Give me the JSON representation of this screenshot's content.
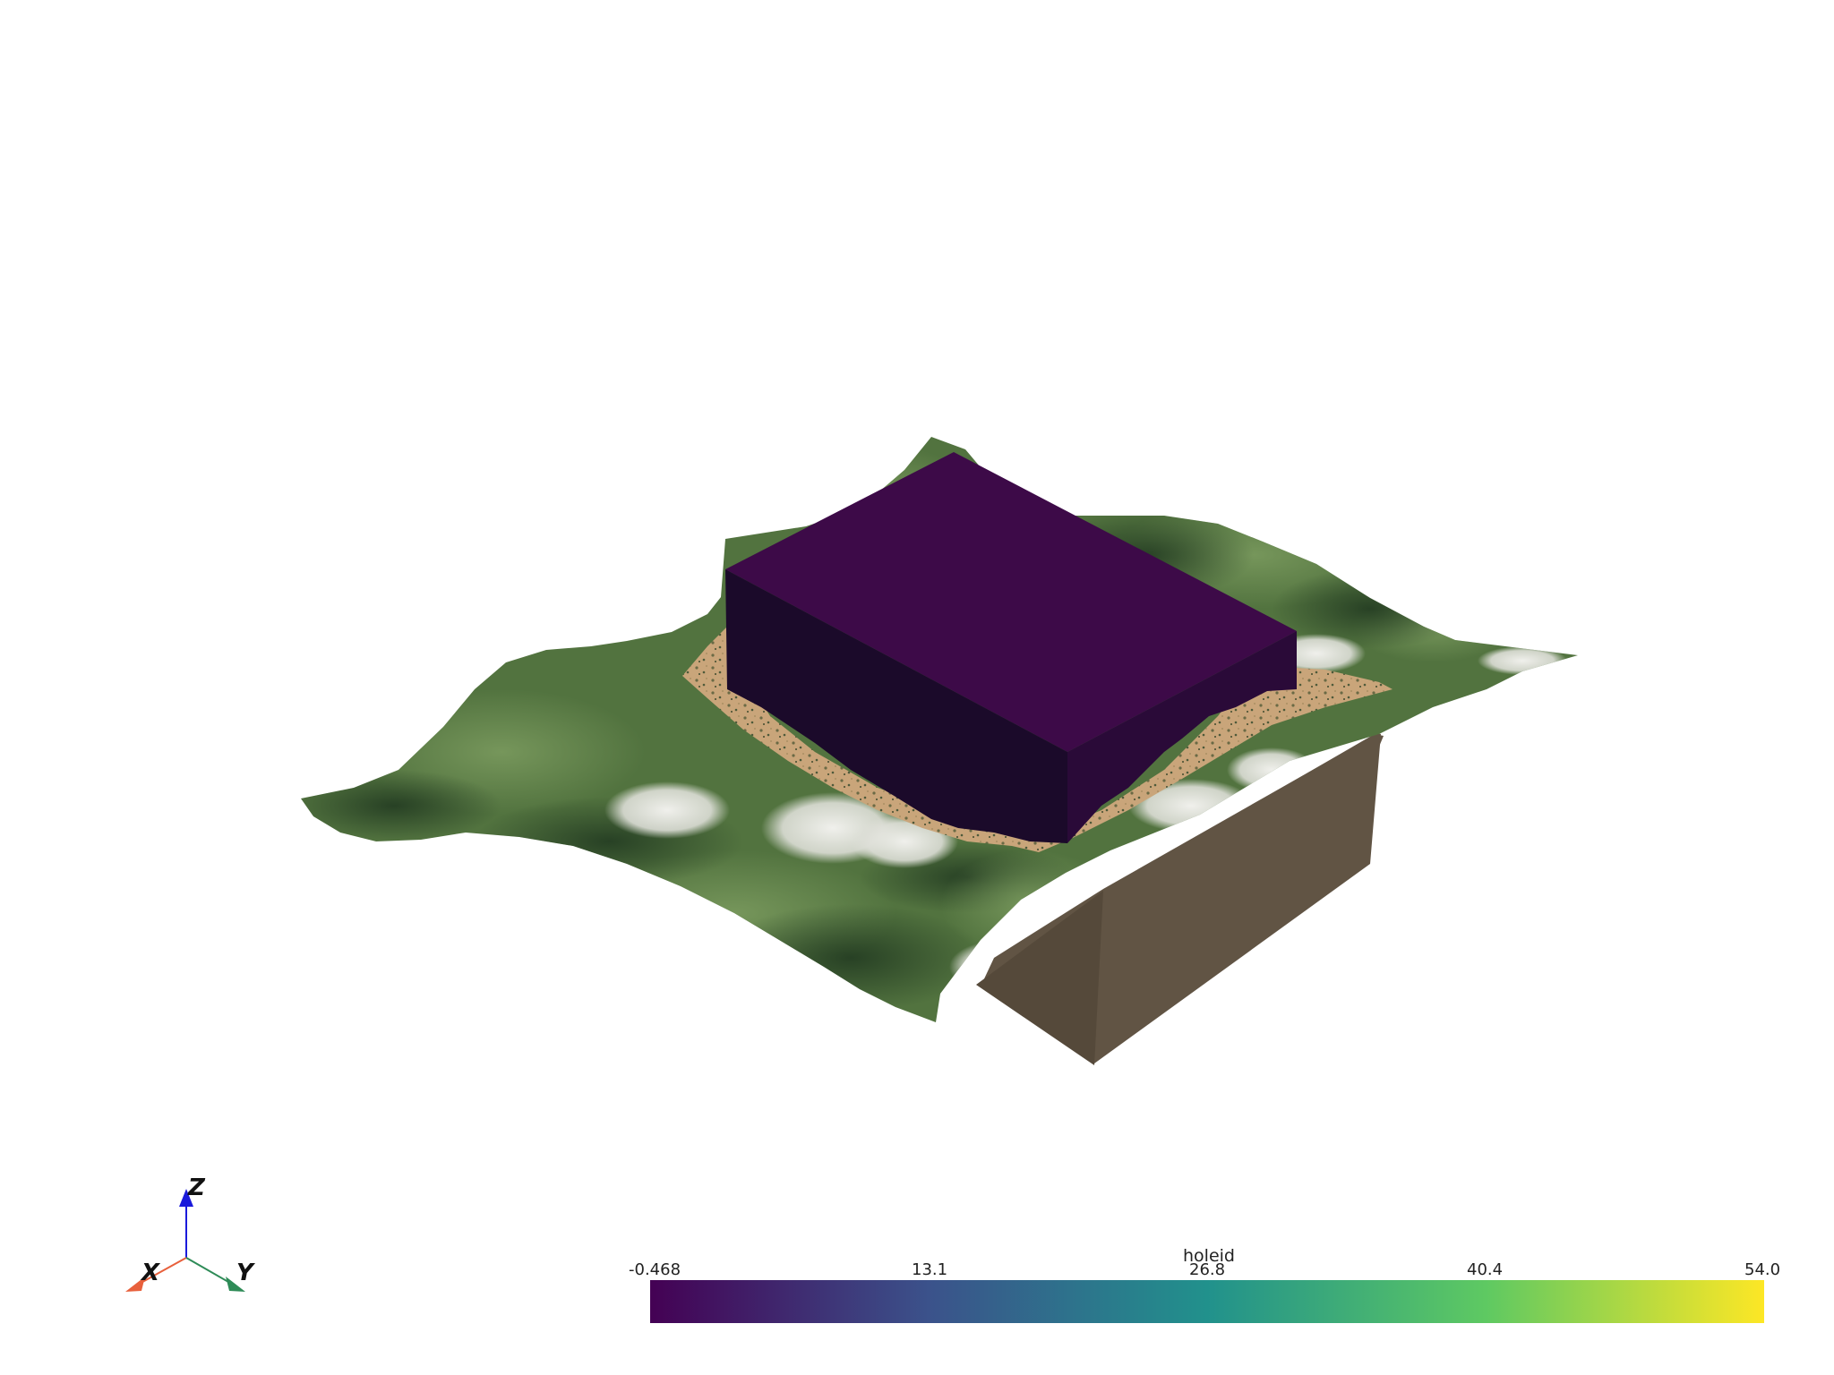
{
  "colorbar": {
    "title": "holeid",
    "min": -0.468,
    "max": 54.0,
    "ticks": [
      "-0.468",
      "13.1",
      "26.8",
      "40.4",
      "54.0"
    ],
    "colors": [
      "#440154",
      "#3b528b",
      "#21918c",
      "#5ec962",
      "#fde725"
    ]
  },
  "orientation_axes": {
    "x_label": "X",
    "y_label": "Y",
    "z_label": "Z",
    "x_color": "#e8603c",
    "y_color": "#2e8b57",
    "z_color": "#1a1adb"
  },
  "scene": {
    "box_top_color": "#3d0a48",
    "box_front_color": "#1b0a2a",
    "box_side_color": "#2a0a38",
    "cross_section_color": "#625545",
    "cross_section_dark_color": "#544838",
    "sand_color": "#c9a57a",
    "terrain_green_color": "#5a7a48",
    "terrain_dark_color": "#2f4a2e",
    "snow_color": "#e6e6e2"
  }
}
